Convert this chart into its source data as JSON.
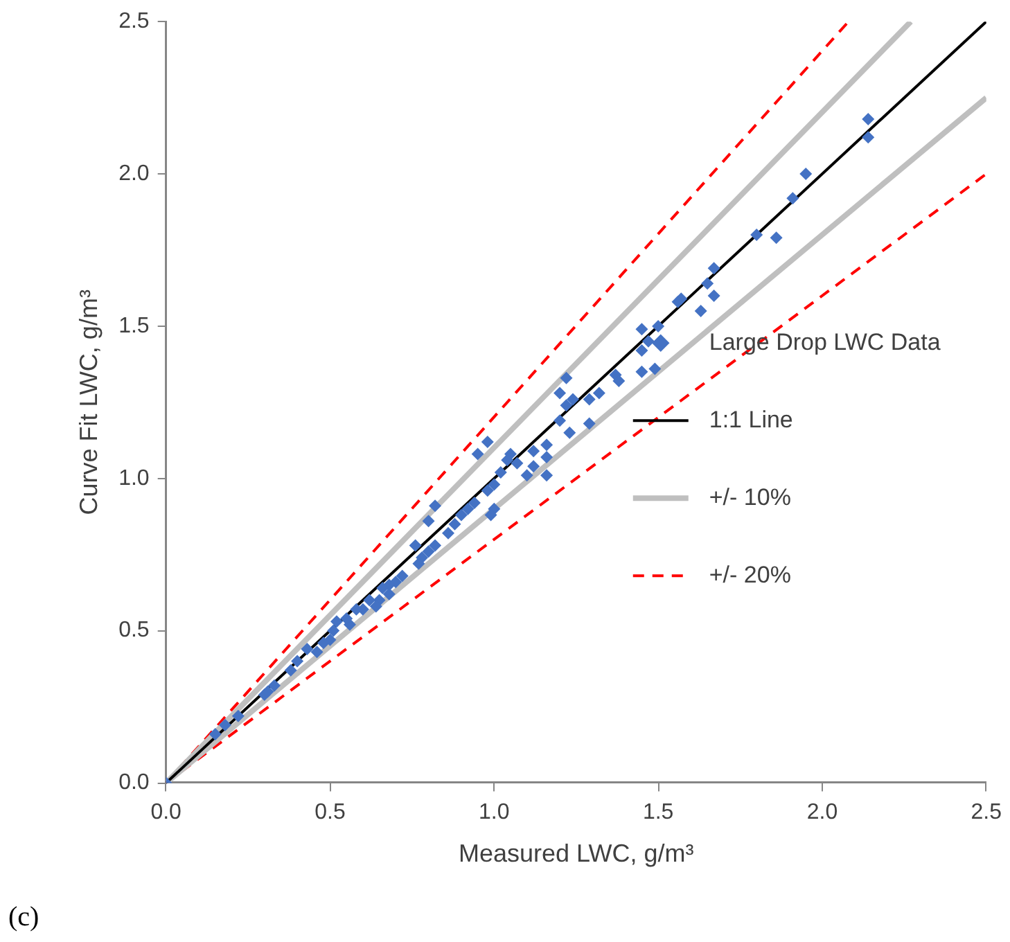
{
  "chart_data": {
    "type": "scatter",
    "xlabel": "Measured LWC, g/m³",
    "ylabel": "Curve Fit LWC, g/m³",
    "xlim": [
      0,
      2.5
    ],
    "ylim": [
      0,
      2.5
    ],
    "xticks": [
      {
        "value": 0,
        "label": "0.0"
      },
      {
        "value": 0.5,
        "label": "0.5"
      },
      {
        "value": 1,
        "label": "1.0"
      },
      {
        "value": 1.5,
        "label": "1.5"
      },
      {
        "value": 2,
        "label": "2.0"
      },
      {
        "value": 2.5,
        "label": "2.5"
      }
    ],
    "yticks": [
      {
        "value": 0,
        "label": "0.0"
      },
      {
        "value": 0.5,
        "label": "0.5"
      },
      {
        "value": 1,
        "label": "1.0"
      },
      {
        "value": 1.5,
        "label": "1.5"
      },
      {
        "value": 2,
        "label": "2.0"
      },
      {
        "value": 2.5,
        "label": "2.5"
      }
    ],
    "grid": false,
    "legend": "right",
    "annotations": [
      "(c)"
    ],
    "series": [
      {
        "name": "Large Drop LWC Data",
        "type": "scatter",
        "marker": "diamond",
        "color": "#4472c4",
        "x": [
          2.14,
          2.14,
          1.95,
          1.91,
          1.8,
          1.86,
          1.67,
          1.65,
          1.63,
          1.67,
          1.57,
          1.56,
          1.5,
          1.49,
          1.47,
          1.45,
          1.45,
          1.45,
          1.37,
          1.38,
          1.32,
          1.29,
          1.22,
          1.2,
          1.22,
          1.24,
          1.2,
          1.23,
          1.29,
          1.16,
          1.16,
          1.16,
          1.12,
          1.12,
          1.1,
          1.07,
          1.05,
          1.04,
          1.02,
          1.0,
          0.98,
          1.0,
          0.99,
          0.98,
          0.95,
          0.94,
          0.92,
          0.9,
          0.88,
          0.86,
          0.82,
          0.8,
          0.82,
          0.8,
          0.78,
          0.77,
          0.76,
          0.72,
          0.7,
          0.68,
          0.68,
          0.66,
          0.65,
          0.64,
          0.62,
          0.6,
          0.58,
          0.56,
          0.55,
          0.52,
          0.51,
          0.5,
          0.48,
          0.46,
          0.43,
          0.4,
          0.38,
          0.33,
          0.31,
          0.3,
          0.22,
          0.18,
          0.15,
          0.0
        ],
        "values": [
          2.18,
          2.12,
          2.0,
          1.92,
          1.8,
          1.79,
          1.69,
          1.64,
          1.55,
          1.6,
          1.59,
          1.58,
          1.5,
          1.36,
          1.45,
          1.49,
          1.42,
          1.35,
          1.34,
          1.32,
          1.28,
          1.26,
          1.33,
          1.28,
          1.24,
          1.26,
          1.19,
          1.15,
          1.18,
          1.11,
          1.07,
          1.01,
          1.09,
          1.04,
          1.01,
          1.05,
          1.08,
          1.06,
          1.02,
          0.98,
          0.96,
          0.9,
          0.88,
          1.12,
          1.08,
          0.92,
          0.9,
          0.88,
          0.85,
          0.82,
          0.91,
          0.86,
          0.78,
          0.76,
          0.74,
          0.72,
          0.78,
          0.68,
          0.66,
          0.65,
          0.62,
          0.64,
          0.6,
          0.58,
          0.6,
          0.57,
          0.57,
          0.52,
          0.54,
          0.53,
          0.5,
          0.47,
          0.46,
          0.43,
          0.44,
          0.4,
          0.37,
          0.32,
          0.3,
          0.29,
          0.22,
          0.19,
          0.16,
          0.0
        ]
      },
      {
        "name": "1:1 Line",
        "type": "line",
        "line_style": "solid",
        "color": "#000000",
        "x": [
          0,
          2.5
        ],
        "values": [
          0,
          2.5
        ]
      },
      {
        "name": "+/- 10%",
        "type": "line",
        "line_style": "solid",
        "color": "#bfbfbf",
        "x": [
          0,
          2.27
        ],
        "values": [
          0,
          2.5
        ]
      },
      {
        "type": "line",
        "line_style": "solid",
        "color": "#bfbfbf",
        "x": [
          0,
          2.5
        ],
        "values": [
          0,
          2.25
        ]
      },
      {
        "name": "+/- 20%",
        "type": "line",
        "line_style": "dashed",
        "color": "#ff0000",
        "x": [
          0,
          2.08
        ],
        "values": [
          0,
          2.5
        ]
      },
      {
        "type": "line",
        "line_style": "dashed",
        "color": "#ff0000",
        "x": [
          0,
          2.5
        ],
        "values": [
          0,
          2.0
        ]
      }
    ]
  }
}
